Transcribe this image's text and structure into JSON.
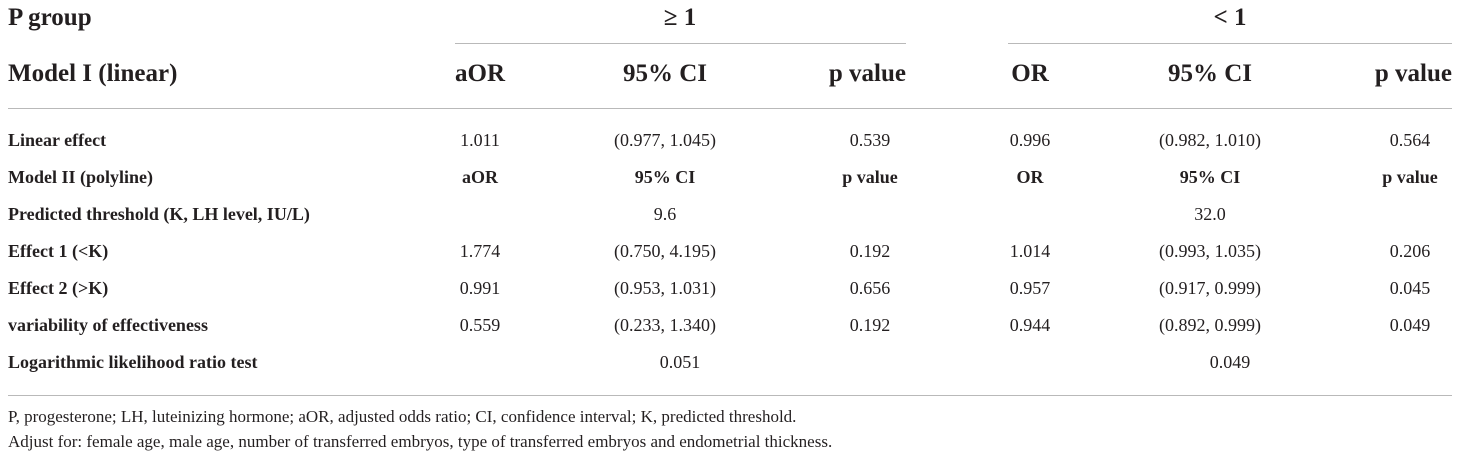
{
  "table": {
    "group_label": "P group",
    "group_ge": "≥ 1",
    "group_lt": "< 1",
    "model1_label": "Model I (linear)",
    "header_ge": [
      "aOR",
      "95% CI",
      "p value"
    ],
    "header_lt": [
      "OR",
      "95% CI",
      "p value"
    ],
    "rows": [
      {
        "label": "Linear effect",
        "ge": [
          "1.011",
          "(0.977, 1.045)",
          "0.539"
        ],
        "lt": [
          "0.996",
          "(0.982, 1.010)",
          "0.564"
        ]
      },
      {
        "label": "Model II (polyline)",
        "ge": [
          "aOR",
          "95% CI",
          "p value"
        ],
        "lt": [
          "OR",
          "95% CI",
          "p value"
        ]
      },
      {
        "label": "Predicted threshold (K, LH level, IU/L)",
        "ge": [
          "",
          "9.6",
          ""
        ],
        "lt": [
          "",
          "32.0",
          ""
        ]
      },
      {
        "label": "Effect 1 (<K)",
        "ge": [
          "1.774",
          "(0.750, 4.195)",
          "0.192"
        ],
        "lt": [
          "1.014",
          "(0.993, 1.035)",
          "0.206"
        ]
      },
      {
        "label": "Effect 2 (>K)",
        "ge": [
          "0.991",
          "(0.953, 1.031)",
          "0.656"
        ],
        "lt": [
          "0.957",
          "(0.917, 0.999)",
          "0.045"
        ]
      },
      {
        "label": "variability of effectiveness",
        "ge": [
          "0.559",
          "(0.233, 1.340)",
          "0.192"
        ],
        "lt": [
          "0.944",
          "(0.892, 0.999)",
          "0.049"
        ]
      },
      {
        "label": "Logarithmic likelihood ratio test",
        "ge": [
          "",
          "0.051",
          ""
        ],
        "lt": [
          "",
          "0.049",
          ""
        ]
      }
    ]
  },
  "footnotes": [
    "P, progesterone; LH, luteinizing hormone; aOR, adjusted odds ratio; CI, confidence interval; K, predicted threshold.",
    "Adjust for: female age, male age, number of transferred embryos, type of transferred embryos and endometrial thickness."
  ]
}
